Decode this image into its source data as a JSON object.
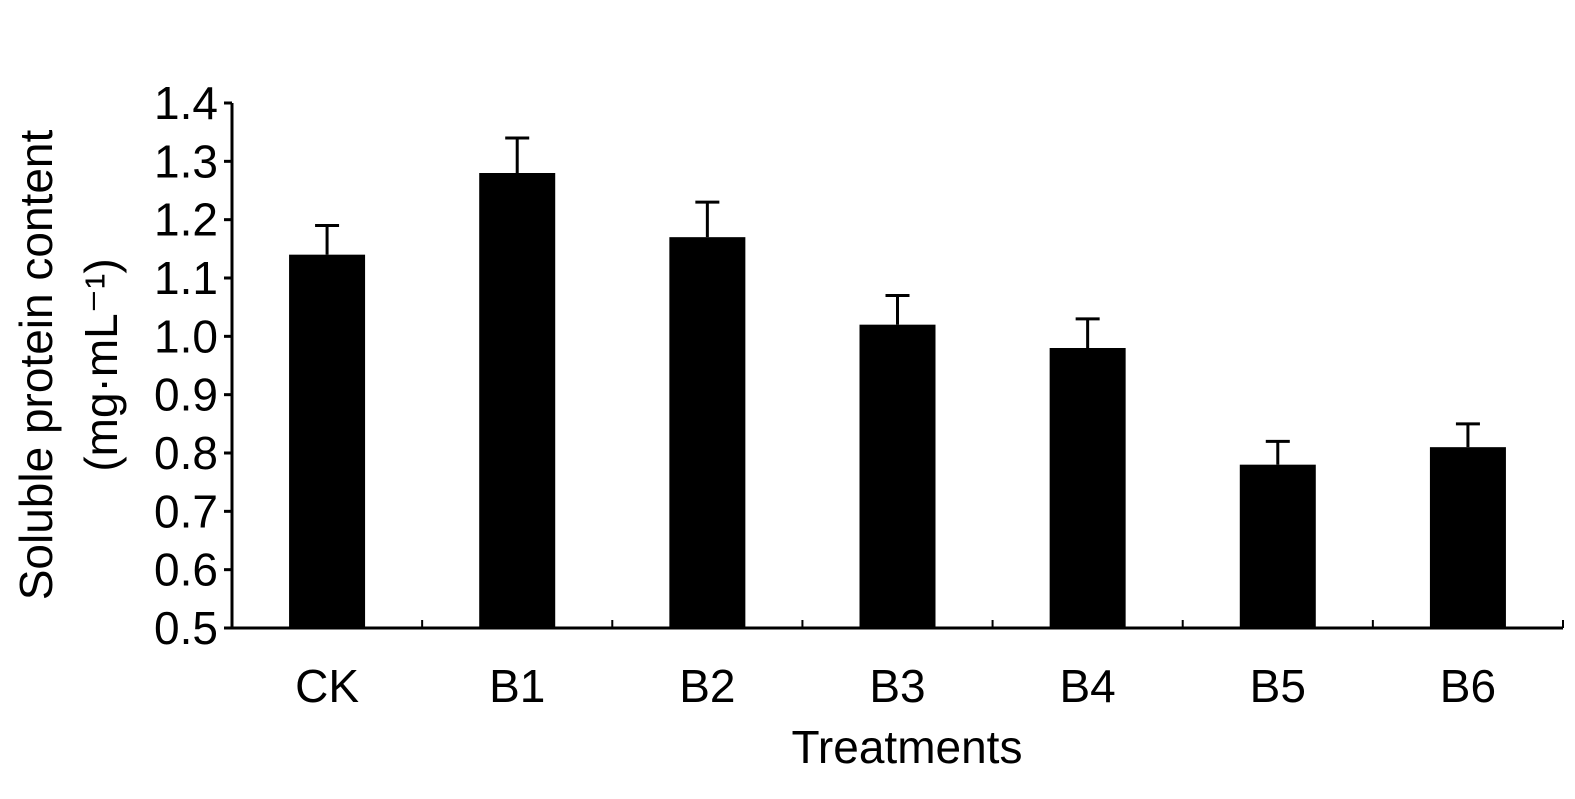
{
  "chart_data": {
    "type": "bar",
    "categories": [
      "CK",
      "B1",
      "B2",
      "B3",
      "B4",
      "B5",
      "B6"
    ],
    "values": [
      1.14,
      1.28,
      1.17,
      1.02,
      0.98,
      0.78,
      0.81
    ],
    "errors": [
      0.05,
      0.06,
      0.06,
      0.05,
      0.05,
      0.04,
      0.04
    ],
    "title": "",
    "xlabel": "Treatments",
    "ylabel": "Soluble protein content",
    "ylabel_unit": "(mg·mL⁻¹)",
    "ylim": [
      0.5,
      1.4
    ],
    "yticks": [
      "0.5",
      "0.6",
      "0.7",
      "0.8",
      "0.9",
      "1.0",
      "1.1",
      "1.2",
      "1.3",
      "1.4"
    ],
    "bar_color": "#000000",
    "grid": false,
    "legend": "none"
  }
}
